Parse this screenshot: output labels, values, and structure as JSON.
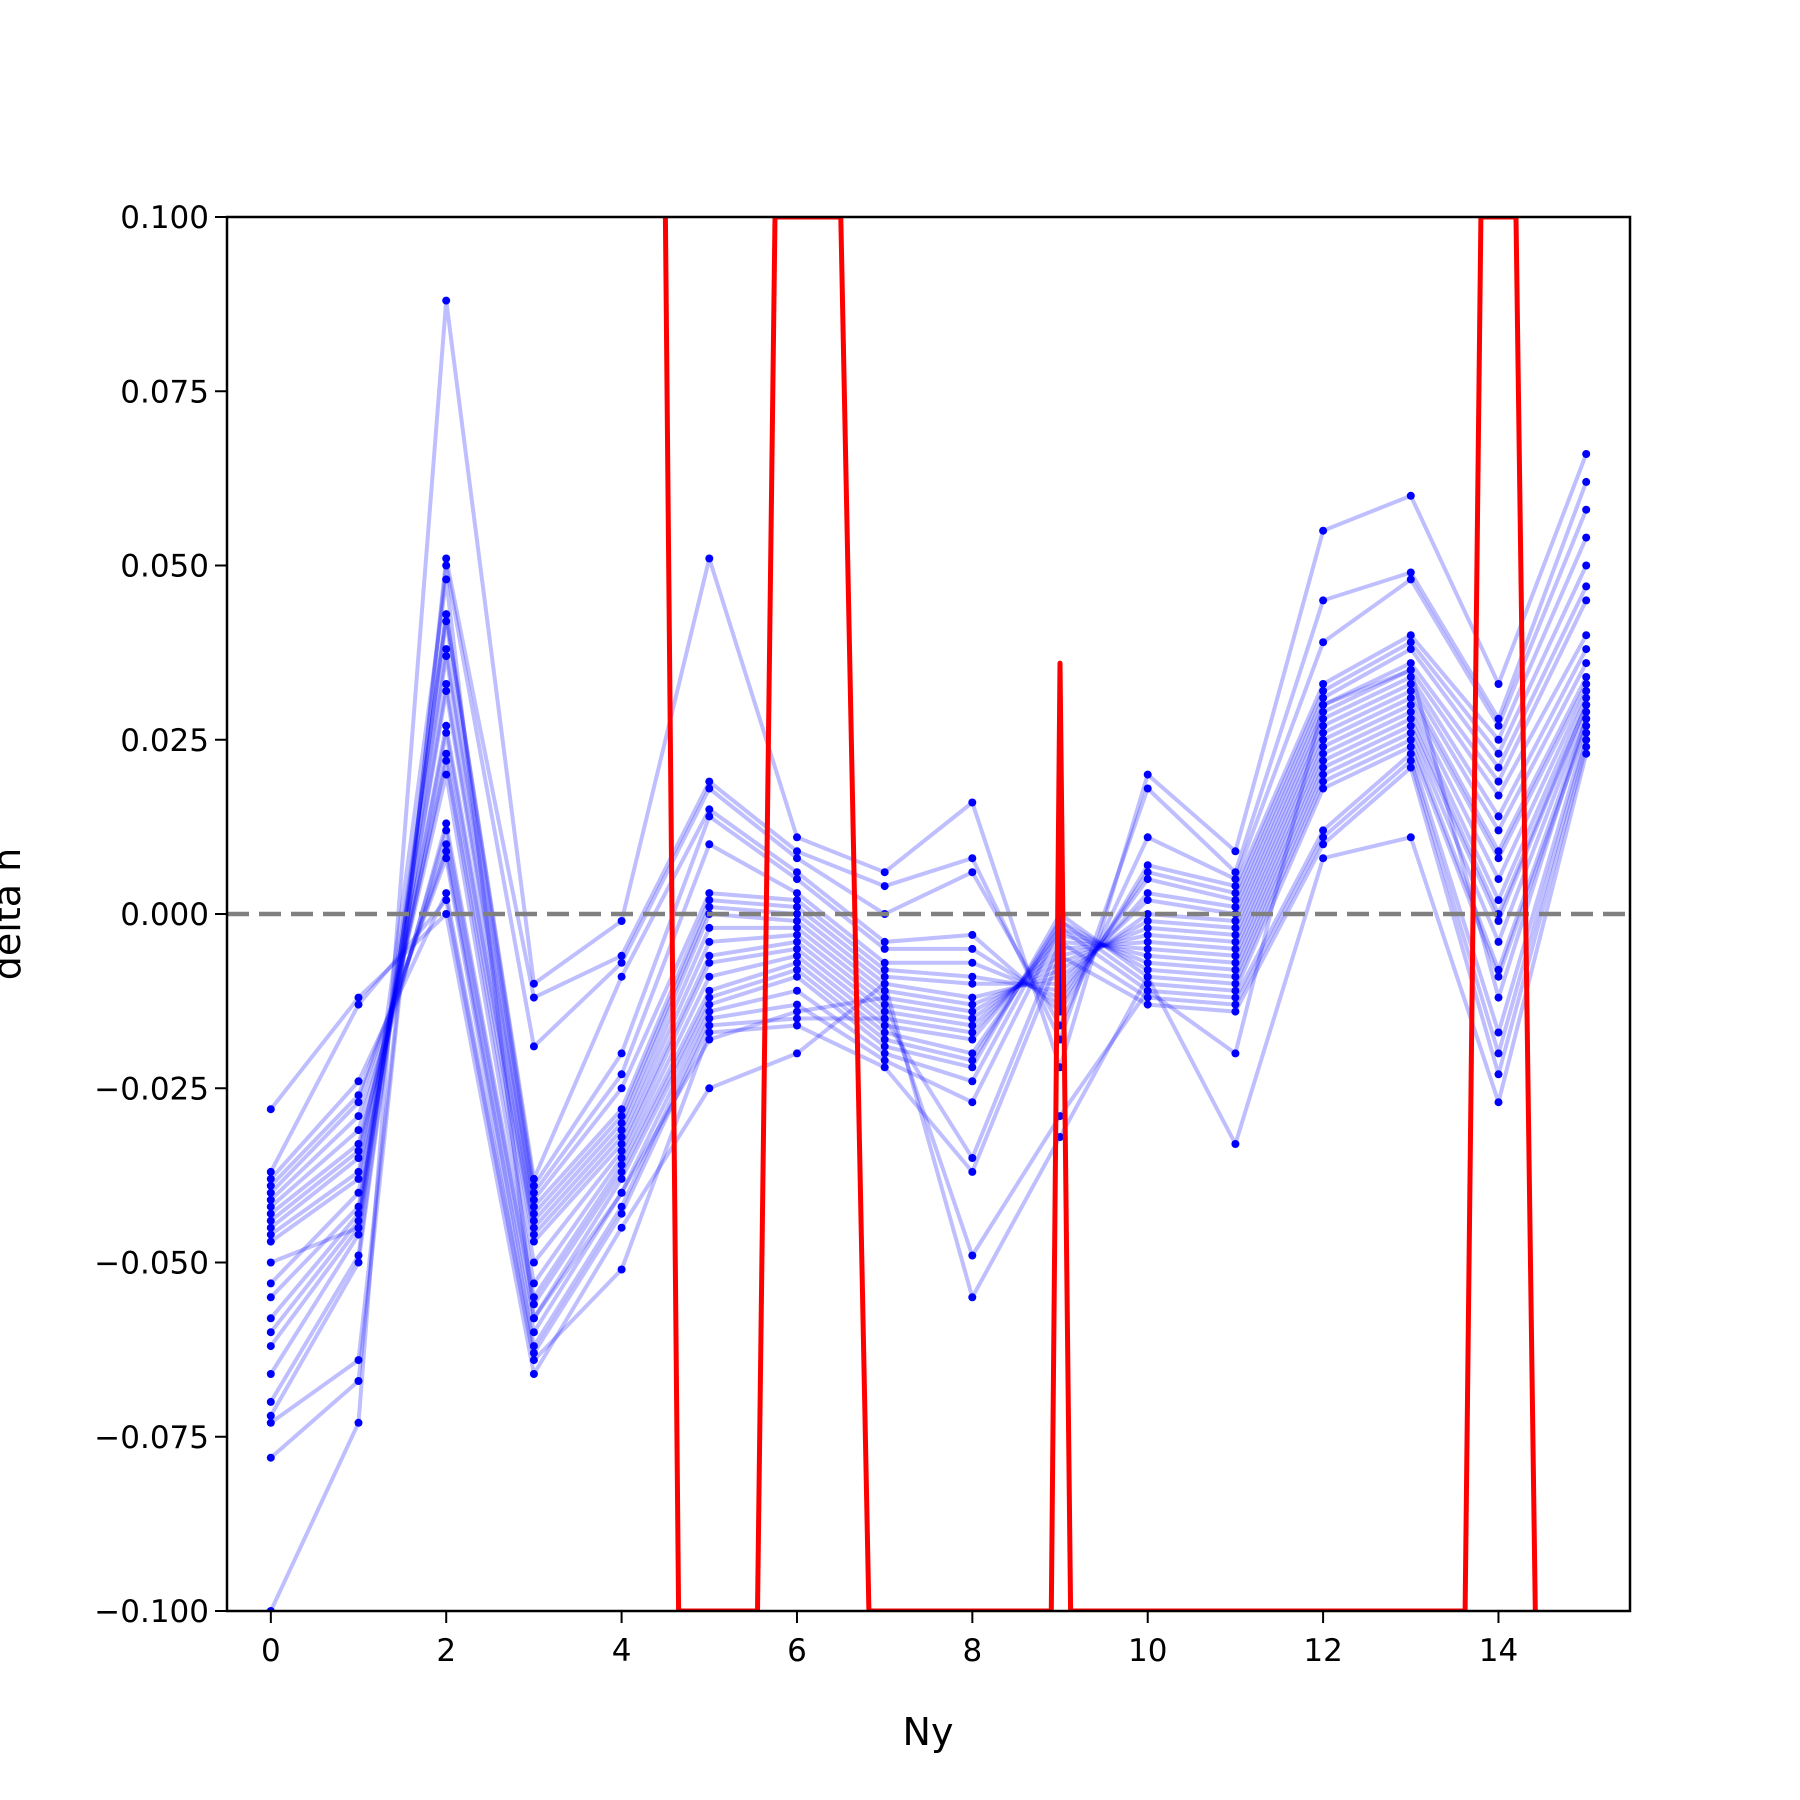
{
  "chart_data": {
    "type": "line",
    "xlabel": "Ny",
    "ylabel": "delta n",
    "xlim": [
      -0.5,
      15.5
    ],
    "ylim": [
      -0.1,
      0.1
    ],
    "xticks": [
      "0",
      "2",
      "4",
      "6",
      "8",
      "10",
      "12",
      "14"
    ],
    "yticks": [
      "0.100",
      "0.075",
      "0.050",
      "0.025",
      "0.000",
      "−0.025",
      "−0.050",
      "−0.075",
      "−0.100"
    ],
    "grid": false,
    "colors": {
      "samples": "#0000ff",
      "highlight": "#ff0000",
      "reference": "#808080"
    },
    "reference_line_y": 0.0,
    "x": [
      0,
      1,
      2,
      3,
      4,
      5,
      6,
      7,
      8,
      9,
      10,
      11,
      12,
      13,
      14,
      15
    ],
    "samples": [
      [
        -0.1,
        -0.073,
        0.088,
        -0.01,
        -0.001,
        0.051,
        0.011,
        0.006,
        0.016,
        -0.022,
        0.02,
        0.009,
        0.055,
        0.06,
        0.033,
        0.066
      ],
      [
        -0.078,
        -0.067,
        0.051,
        -0.012,
        -0.006,
        0.019,
        0.009,
        0.004,
        0.008,
        -0.018,
        0.018,
        0.006,
        0.045,
        0.049,
        0.028,
        0.062
      ],
      [
        -0.073,
        -0.064,
        0.05,
        -0.019,
        -0.007,
        0.018,
        0.008,
        0.0,
        0.006,
        -0.016,
        0.011,
        0.005,
        0.039,
        0.048,
        0.027,
        0.058
      ],
      [
        -0.072,
        -0.05,
        0.043,
        -0.038,
        -0.009,
        0.015,
        0.006,
        -0.004,
        -0.003,
        -0.014,
        0.007,
        0.004,
        0.033,
        0.04,
        0.025,
        0.054
      ],
      [
        -0.07,
        -0.049,
        0.043,
        -0.039,
        -0.02,
        0.014,
        0.005,
        -0.005,
        -0.005,
        -0.013,
        0.006,
        0.003,
        0.032,
        0.039,
        0.023,
        0.05
      ],
      [
        -0.066,
        -0.046,
        0.042,
        -0.04,
        -0.023,
        0.01,
        0.003,
        -0.007,
        -0.007,
        -0.012,
        0.005,
        0.002,
        0.031,
        0.038,
        0.021,
        0.047
      ],
      [
        -0.062,
        -0.045,
        0.038,
        -0.041,
        -0.025,
        0.003,
        0.002,
        -0.008,
        -0.009,
        -0.011,
        0.003,
        0.001,
        0.03,
        0.036,
        0.019,
        0.045
      ],
      [
        -0.06,
        -0.044,
        0.037,
        -0.042,
        -0.028,
        0.002,
        0.001,
        -0.009,
        -0.01,
        -0.01,
        0.002,
        0.0,
        0.029,
        0.035,
        0.017,
        0.04
      ],
      [
        -0.058,
        -0.043,
        0.033,
        -0.043,
        -0.029,
        0.001,
        0.0,
        -0.01,
        -0.012,
        -0.009,
        0.0,
        -0.001,
        0.028,
        0.034,
        0.014,
        0.038
      ],
      [
        -0.055,
        -0.042,
        0.032,
        -0.044,
        -0.03,
        0.0,
        -0.001,
        -0.011,
        -0.013,
        -0.008,
        -0.001,
        -0.002,
        0.027,
        0.033,
        0.012,
        0.036
      ],
      [
        -0.053,
        -0.04,
        0.027,
        -0.045,
        -0.031,
        -0.002,
        -0.002,
        -0.012,
        -0.014,
        -0.007,
        -0.002,
        -0.003,
        0.026,
        0.032,
        0.009,
        0.034
      ],
      [
        -0.047,
        -0.038,
        0.026,
        -0.046,
        -0.032,
        -0.004,
        -0.003,
        -0.013,
        -0.015,
        -0.006,
        -0.003,
        -0.004,
        0.025,
        0.031,
        0.008,
        0.033
      ],
      [
        -0.046,
        -0.037,
        0.023,
        -0.047,
        -0.033,
        -0.006,
        -0.004,
        -0.014,
        -0.016,
        -0.005,
        -0.004,
        -0.005,
        0.024,
        0.03,
        0.005,
        0.032
      ],
      [
        -0.045,
        -0.035,
        0.022,
        -0.05,
        -0.034,
        -0.007,
        -0.005,
        -0.015,
        -0.017,
        -0.004,
        -0.005,
        -0.006,
        0.023,
        0.029,
        0.002,
        0.031
      ],
      [
        -0.044,
        -0.034,
        0.02,
        -0.053,
        -0.035,
        -0.009,
        -0.006,
        -0.016,
        -0.018,
        -0.003,
        -0.006,
        -0.007,
        0.022,
        0.028,
        0.0,
        0.03
      ],
      [
        -0.043,
        -0.033,
        0.013,
        -0.055,
        -0.036,
        -0.011,
        -0.007,
        -0.017,
        -0.02,
        -0.002,
        -0.007,
        -0.008,
        0.021,
        0.027,
        -0.001,
        0.03
      ],
      [
        -0.042,
        -0.031,
        0.012,
        -0.056,
        -0.037,
        -0.012,
        -0.008,
        -0.018,
        -0.021,
        -0.001,
        -0.008,
        -0.009,
        0.02,
        0.026,
        -0.004,
        0.029
      ],
      [
        -0.041,
        -0.029,
        0.01,
        -0.058,
        -0.038,
        -0.013,
        -0.009,
        -0.019,
        -0.022,
        0.0,
        -0.009,
        -0.01,
        0.019,
        0.025,
        -0.008,
        0.028
      ],
      [
        -0.04,
        -0.027,
        0.009,
        -0.06,
        -0.04,
        -0.014,
        -0.011,
        -0.02,
        -0.024,
        -0.001,
        -0.01,
        -0.011,
        0.018,
        0.024,
        -0.009,
        0.027
      ],
      [
        -0.039,
        -0.026,
        0.008,
        -0.062,
        -0.042,
        -0.015,
        -0.013,
        -0.021,
        -0.027,
        -0.002,
        -0.011,
        -0.012,
        0.012,
        0.023,
        -0.017,
        0.026
      ],
      [
        -0.038,
        -0.024,
        0.003,
        -0.063,
        -0.043,
        -0.016,
        -0.015,
        -0.015,
        -0.035,
        -0.004,
        -0.012,
        -0.013,
        0.011,
        0.022,
        -0.02,
        0.025
      ],
      [
        -0.037,
        -0.013,
        0.002,
        -0.064,
        -0.051,
        -0.017,
        -0.016,
        -0.022,
        -0.037,
        -0.006,
        -0.013,
        -0.014,
        0.01,
        0.021,
        -0.023,
        0.024
      ],
      [
        -0.028,
        -0.012,
        0.0,
        -0.066,
        -0.045,
        -0.025,
        -0.02,
        -0.01,
        -0.055,
        -0.032,
        -0.009,
        -0.033,
        0.008,
        0.011,
        -0.027,
        0.023
      ],
      [
        -0.05,
        -0.045,
        0.048,
        -0.058,
        -0.04,
        -0.018,
        -0.014,
        -0.012,
        -0.049,
        -0.029,
        -0.011,
        -0.02,
        0.03,
        0.035,
        -0.012,
        0.028
      ]
    ],
    "highlight": [
      [
        4.5,
        0.1
      ],
      [
        4.65,
        -0.1
      ],
      [
        5.55,
        -0.1
      ],
      [
        5.75,
        0.1
      ],
      [
        6.5,
        0.1
      ],
      [
        6.82,
        -0.1
      ],
      [
        8.9,
        -0.1
      ],
      [
        9.0,
        0.036
      ],
      [
        9.12,
        -0.1
      ],
      [
        13.62,
        -0.1
      ],
      [
        13.8,
        0.1
      ],
      [
        14.2,
        0.1
      ],
      [
        14.42,
        -0.1
      ]
    ]
  }
}
